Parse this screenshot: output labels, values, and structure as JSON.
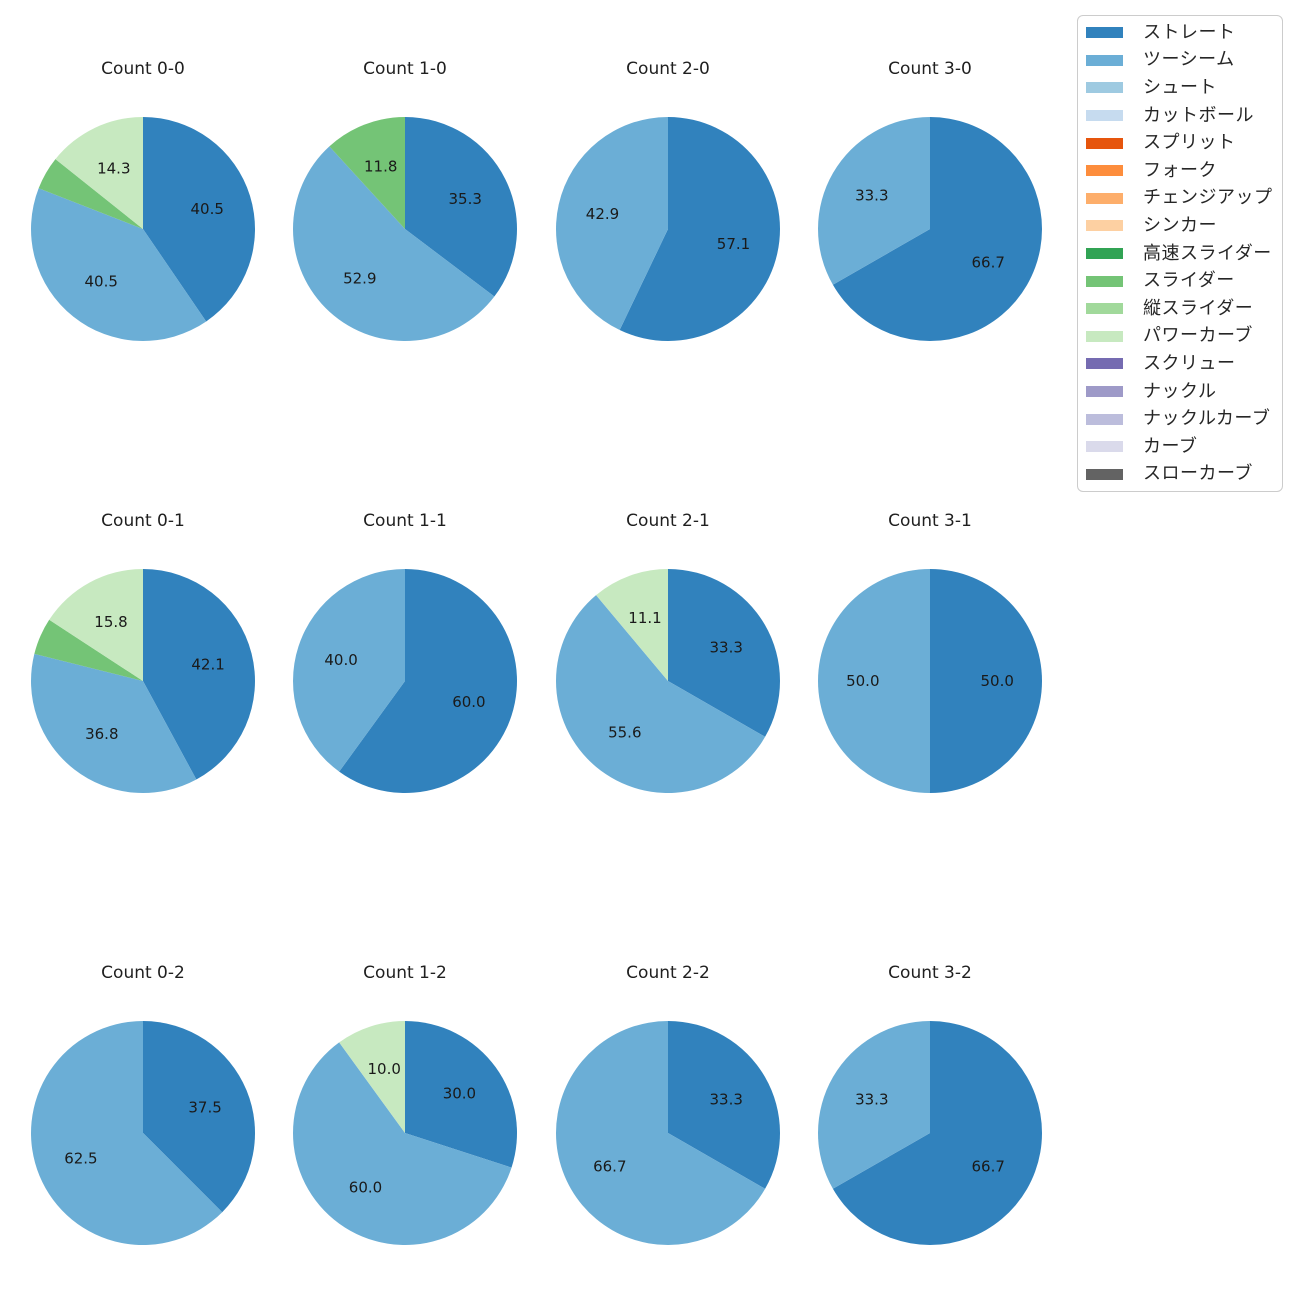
{
  "colors": {
    "ストレート": "#3182bd",
    "ツーシーム": "#6baed6",
    "シュート": "#9ecae1",
    "カットボール": "#c6dbef",
    "スプリット": "#e6550d",
    "フォーク": "#fd8d3c",
    "チェンジアップ": "#fdae6b",
    "シンカー": "#fdd0a2",
    "高速スライダー": "#31a354",
    "スライダー": "#74c476",
    "縦スライダー": "#a1d99b",
    "パワーカーブ": "#c7e9c0",
    "スクリュー": "#756bb1",
    "ナックル": "#9e9ac8",
    "ナックルカーブ": "#bcbddc",
    "カーブ": "#dadaeb",
    "スローカーブ": "#636363"
  },
  "legend": {
    "entries": [
      "ストレート",
      "ツーシーム",
      "シュート",
      "カットボール",
      "スプリット",
      "フォーク",
      "チェンジアップ",
      "シンカー",
      "高速スライダー",
      "スライダー",
      "縦スライダー",
      "パワーカーブ",
      "スクリュー",
      "ナックル",
      "ナックルカーブ",
      "カーブ",
      "スローカーブ"
    ]
  },
  "chart_data": [
    {
      "type": "pie",
      "title": "Count 0-0",
      "start_angle": 90,
      "direction": "clockwise",
      "label_distance": 0.6,
      "labels": [
        "ストレート",
        "ツーシーム",
        "スライダー",
        "パワーカーブ"
      ],
      "values": [
        40.5,
        40.5,
        4.8,
        14.3
      ],
      "pct_labels": [
        "40.5",
        "40.5",
        null,
        "14.3"
      ]
    },
    {
      "type": "pie",
      "title": "Count 1-0",
      "start_angle": 90,
      "direction": "clockwise",
      "label_distance": 0.6,
      "labels": [
        "ストレート",
        "ツーシーム",
        "スライダー"
      ],
      "values": [
        35.3,
        52.9,
        11.8
      ],
      "pct_labels": [
        "35.3",
        "52.9",
        "11.8"
      ]
    },
    {
      "type": "pie",
      "title": "Count 2-0",
      "start_angle": 90,
      "direction": "clockwise",
      "label_distance": 0.6,
      "labels": [
        "ストレート",
        "ツーシーム"
      ],
      "values": [
        57.1,
        42.9
      ],
      "pct_labels": [
        "57.1",
        "42.9"
      ]
    },
    {
      "type": "pie",
      "title": "Count 3-0",
      "start_angle": 90,
      "direction": "clockwise",
      "label_distance": 0.6,
      "labels": [
        "ストレート",
        "ツーシーム"
      ],
      "values": [
        66.7,
        33.3
      ],
      "pct_labels": [
        "66.7",
        "33.3"
      ]
    },
    {
      "type": "pie",
      "title": "Count 0-1",
      "start_angle": 90,
      "direction": "clockwise",
      "label_distance": 0.6,
      "labels": [
        "ストレート",
        "ツーシーム",
        "スライダー",
        "パワーカーブ"
      ],
      "values": [
        42.1,
        36.8,
        5.3,
        15.8
      ],
      "pct_labels": [
        "42.1",
        "36.8",
        null,
        "15.8"
      ]
    },
    {
      "type": "pie",
      "title": "Count 1-1",
      "start_angle": 90,
      "direction": "clockwise",
      "label_distance": 0.6,
      "labels": [
        "ストレート",
        "ツーシーム"
      ],
      "values": [
        60.0,
        40.0
      ],
      "pct_labels": [
        "60.0",
        "40.0"
      ]
    },
    {
      "type": "pie",
      "title": "Count 2-1",
      "start_angle": 90,
      "direction": "clockwise",
      "label_distance": 0.6,
      "labels": [
        "ストレート",
        "ツーシーム",
        "パワーカーブ"
      ],
      "values": [
        33.3,
        55.6,
        11.1
      ],
      "pct_labels": [
        "33.3",
        "55.6",
        "11.1"
      ]
    },
    {
      "type": "pie",
      "title": "Count 3-1",
      "start_angle": 90,
      "direction": "clockwise",
      "label_distance": 0.6,
      "labels": [
        "ストレート",
        "ツーシーム"
      ],
      "values": [
        50.0,
        50.0
      ],
      "pct_labels": [
        "50.0",
        "50.0"
      ]
    },
    {
      "type": "pie",
      "title": "Count 0-2",
      "start_angle": 90,
      "direction": "clockwise",
      "label_distance": 0.6,
      "labels": [
        "ストレート",
        "ツーシーム"
      ],
      "values": [
        37.5,
        62.5
      ],
      "pct_labels": [
        "37.5",
        "62.5"
      ]
    },
    {
      "type": "pie",
      "title": "Count 1-2",
      "start_angle": 90,
      "direction": "clockwise",
      "label_distance": 0.6,
      "labels": [
        "ストレート",
        "ツーシーム",
        "パワーカーブ"
      ],
      "values": [
        30.0,
        60.0,
        10.0
      ],
      "pct_labels": [
        "30.0",
        "60.0",
        "10.0"
      ]
    },
    {
      "type": "pie",
      "title": "Count 2-2",
      "start_angle": 90,
      "direction": "clockwise",
      "label_distance": 0.6,
      "labels": [
        "ストレート",
        "ツーシーム"
      ],
      "values": [
        33.3,
        66.7
      ],
      "pct_labels": [
        "33.3",
        "66.7"
      ]
    },
    {
      "type": "pie",
      "title": "Count 3-2",
      "start_angle": 90,
      "direction": "clockwise",
      "label_distance": 0.6,
      "labels": [
        "ストレート",
        "ツーシーム"
      ],
      "values": [
        66.7,
        33.3
      ],
      "pct_labels": [
        "66.7",
        "33.3"
      ]
    }
  ]
}
